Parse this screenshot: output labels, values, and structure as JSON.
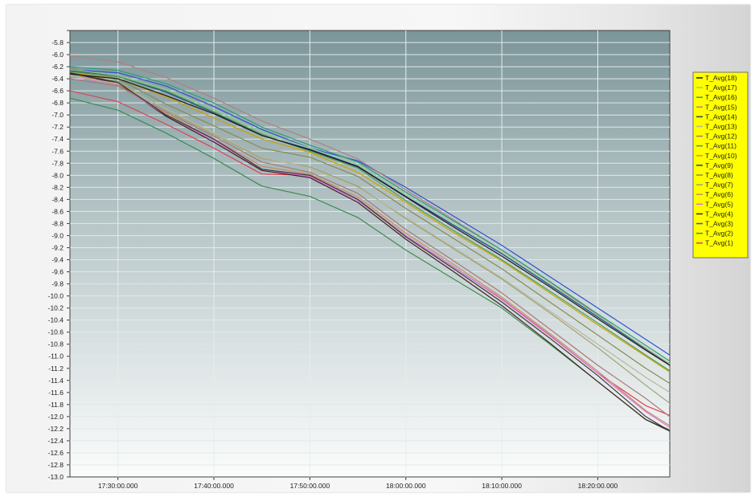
{
  "chart_data": {
    "type": "line",
    "title": "",
    "xlabel": "",
    "ylabel": "",
    "x_ticks": [
      "17:30:00.000",
      "17:40:00.000",
      "17:50:00.000",
      "18:00:00.000",
      "18:10:00.000",
      "18:20:00.000"
    ],
    "x_tick_minutes": [
      5,
      15,
      25,
      35,
      45,
      55
    ],
    "x_range_minutes": [
      0,
      62.5
    ],
    "x_origin_time": "17:25:00",
    "ylim": [
      -13.0,
      -5.6
    ],
    "y_step": 0.2,
    "grid": true,
    "legend_position": "right",
    "x": [
      0,
      5,
      10,
      15,
      20,
      25,
      30,
      35,
      40,
      45,
      50,
      55,
      60,
      62.5
    ],
    "series": [
      {
        "name": "T_Avg(18)",
        "color": "#1a1a1a",
        "values": [
          -6.32,
          -6.4,
          -6.68,
          -6.98,
          -7.34,
          -7.58,
          -7.86,
          -8.36,
          -8.86,
          -9.34,
          -9.85,
          -10.38,
          -10.9,
          -11.15
        ]
      },
      {
        "name": "T_Avg(17)",
        "color": "#8fcf8f",
        "values": [
          -6.25,
          -6.34,
          -6.58,
          -6.9,
          -7.28,
          -7.55,
          -7.82,
          -8.32,
          -8.8,
          -9.28,
          -9.8,
          -10.33,
          -10.86,
          -11.12
        ]
      },
      {
        "name": "T_Avg(16)",
        "color": "#2f9b7a",
        "values": [
          -6.2,
          -6.26,
          -6.48,
          -6.8,
          -7.2,
          -7.5,
          -7.78,
          -8.28,
          -8.76,
          -9.24,
          -9.76,
          -10.3,
          -10.82,
          -11.08
        ]
      },
      {
        "name": "T_Avg(15)",
        "color": "#b08080",
        "values": [
          -6.02,
          -6.12,
          -6.38,
          -6.72,
          -7.1,
          -7.4,
          -7.73,
          -8.24,
          -8.74,
          -9.24,
          -9.77,
          -10.32,
          -10.87,
          -11.13
        ]
      },
      {
        "name": "T_Avg(14)",
        "color": "#3a3a3a",
        "values": [
          -6.3,
          -6.46,
          -7.0,
          -7.4,
          -7.9,
          -8.0,
          -8.4,
          -9.02,
          -9.55,
          -10.1,
          -10.7,
          -11.32,
          -12.0,
          -12.24
        ]
      },
      {
        "name": "T_Avg(13)",
        "color": "#b8b898",
        "values": [
          -6.35,
          -6.48,
          -6.9,
          -7.3,
          -7.7,
          -7.88,
          -8.2,
          -8.7,
          -9.2,
          -9.7,
          -10.25,
          -10.8,
          -11.35,
          -11.6
        ]
      },
      {
        "name": "T_Avg(12)",
        "color": "#a87878",
        "values": [
          -6.4,
          -6.52,
          -6.95,
          -7.35,
          -7.78,
          -7.95,
          -8.3,
          -8.9,
          -9.42,
          -9.95,
          -10.55,
          -11.15,
          -11.7,
          -12.0
        ]
      },
      {
        "name": "T_Avg(11)",
        "color": "#4aa04a",
        "values": [
          -6.28,
          -6.36,
          -6.6,
          -6.95,
          -7.32,
          -7.6,
          -7.88,
          -8.42,
          -8.92,
          -9.4,
          -9.92,
          -10.45,
          -10.98,
          -11.24
        ]
      },
      {
        "name": "T_Avg(10)",
        "color": "#d0a000",
        "values": [
          -6.3,
          -6.4,
          -6.7,
          -7.05,
          -7.4,
          -7.62,
          -7.95,
          -8.45,
          -8.95,
          -9.42,
          -9.95,
          -10.48,
          -11.0,
          -11.26
        ]
      },
      {
        "name": "T_Avg(9)",
        "color": "#1e3c96",
        "values": [
          -6.26,
          -6.36,
          -6.62,
          -6.96,
          -7.34,
          -7.57,
          -7.85,
          -8.35,
          -8.83,
          -9.3,
          -9.82,
          -10.35,
          -10.88,
          -11.14
        ]
      },
      {
        "name": "T_Avg(8)",
        "color": "#8a8a50",
        "values": [
          -6.22,
          -6.4,
          -6.82,
          -7.18,
          -7.55,
          -7.7,
          -8.02,
          -8.55,
          -9.05,
          -9.55,
          -10.1,
          -10.65,
          -11.2,
          -11.45
        ]
      },
      {
        "name": "T_Avg(7)",
        "color": "#a0a070",
        "values": [
          -6.3,
          -6.45,
          -6.92,
          -7.32,
          -7.72,
          -7.86,
          -8.18,
          -8.72,
          -9.22,
          -9.72,
          -10.28,
          -10.86,
          -11.48,
          -11.78
        ]
      },
      {
        "name": "T_Avg(6)",
        "color": "#c09060",
        "values": [
          -6.32,
          -6.5,
          -6.98,
          -7.4,
          -7.85,
          -7.98,
          -8.36,
          -8.96,
          -9.48,
          -10.02,
          -10.62,
          -11.25,
          -11.9,
          -12.15
        ]
      },
      {
        "name": "T_Avg(5)",
        "color": "#e070e0",
        "values": [
          -6.35,
          -6.5,
          -7.0,
          -7.42,
          -7.9,
          -8.02,
          -8.42,
          -9.0,
          -9.52,
          -10.06,
          -10.66,
          -11.28,
          -11.92,
          -12.18
        ]
      },
      {
        "name": "T_Avg(4)",
        "color": "#402020",
        "values": [
          -6.3,
          -6.48,
          -7.02,
          -7.45,
          -7.92,
          -8.04,
          -8.45,
          -9.06,
          -9.6,
          -10.16,
          -10.78,
          -11.42,
          -12.05,
          -12.24
        ]
      },
      {
        "name": "T_Avg(3)",
        "color": "#3050d0",
        "values": [
          -6.25,
          -6.3,
          -6.52,
          -6.86,
          -7.24,
          -7.55,
          -7.76,
          -8.2,
          -8.68,
          -9.16,
          -9.68,
          -10.2,
          -10.72,
          -10.98
        ]
      },
      {
        "name": "T_Avg(2)",
        "color": "#3c8c50",
        "values": [
          -6.72,
          -6.92,
          -7.3,
          -7.72,
          -8.18,
          -8.35,
          -8.7,
          -9.24,
          -9.72,
          -10.2,
          -10.8,
          -11.42,
          -12.05,
          -12.22
        ]
      },
      {
        "name": "T_Avg(1)",
        "color": "#e04050",
        "values": [
          -6.6,
          -6.78,
          -7.15,
          -7.55,
          -7.98,
          -8.0,
          -8.4,
          -9.0,
          -9.52,
          -10.05,
          -10.65,
          -11.28,
          -11.82,
          -11.98
        ]
      }
    ]
  }
}
